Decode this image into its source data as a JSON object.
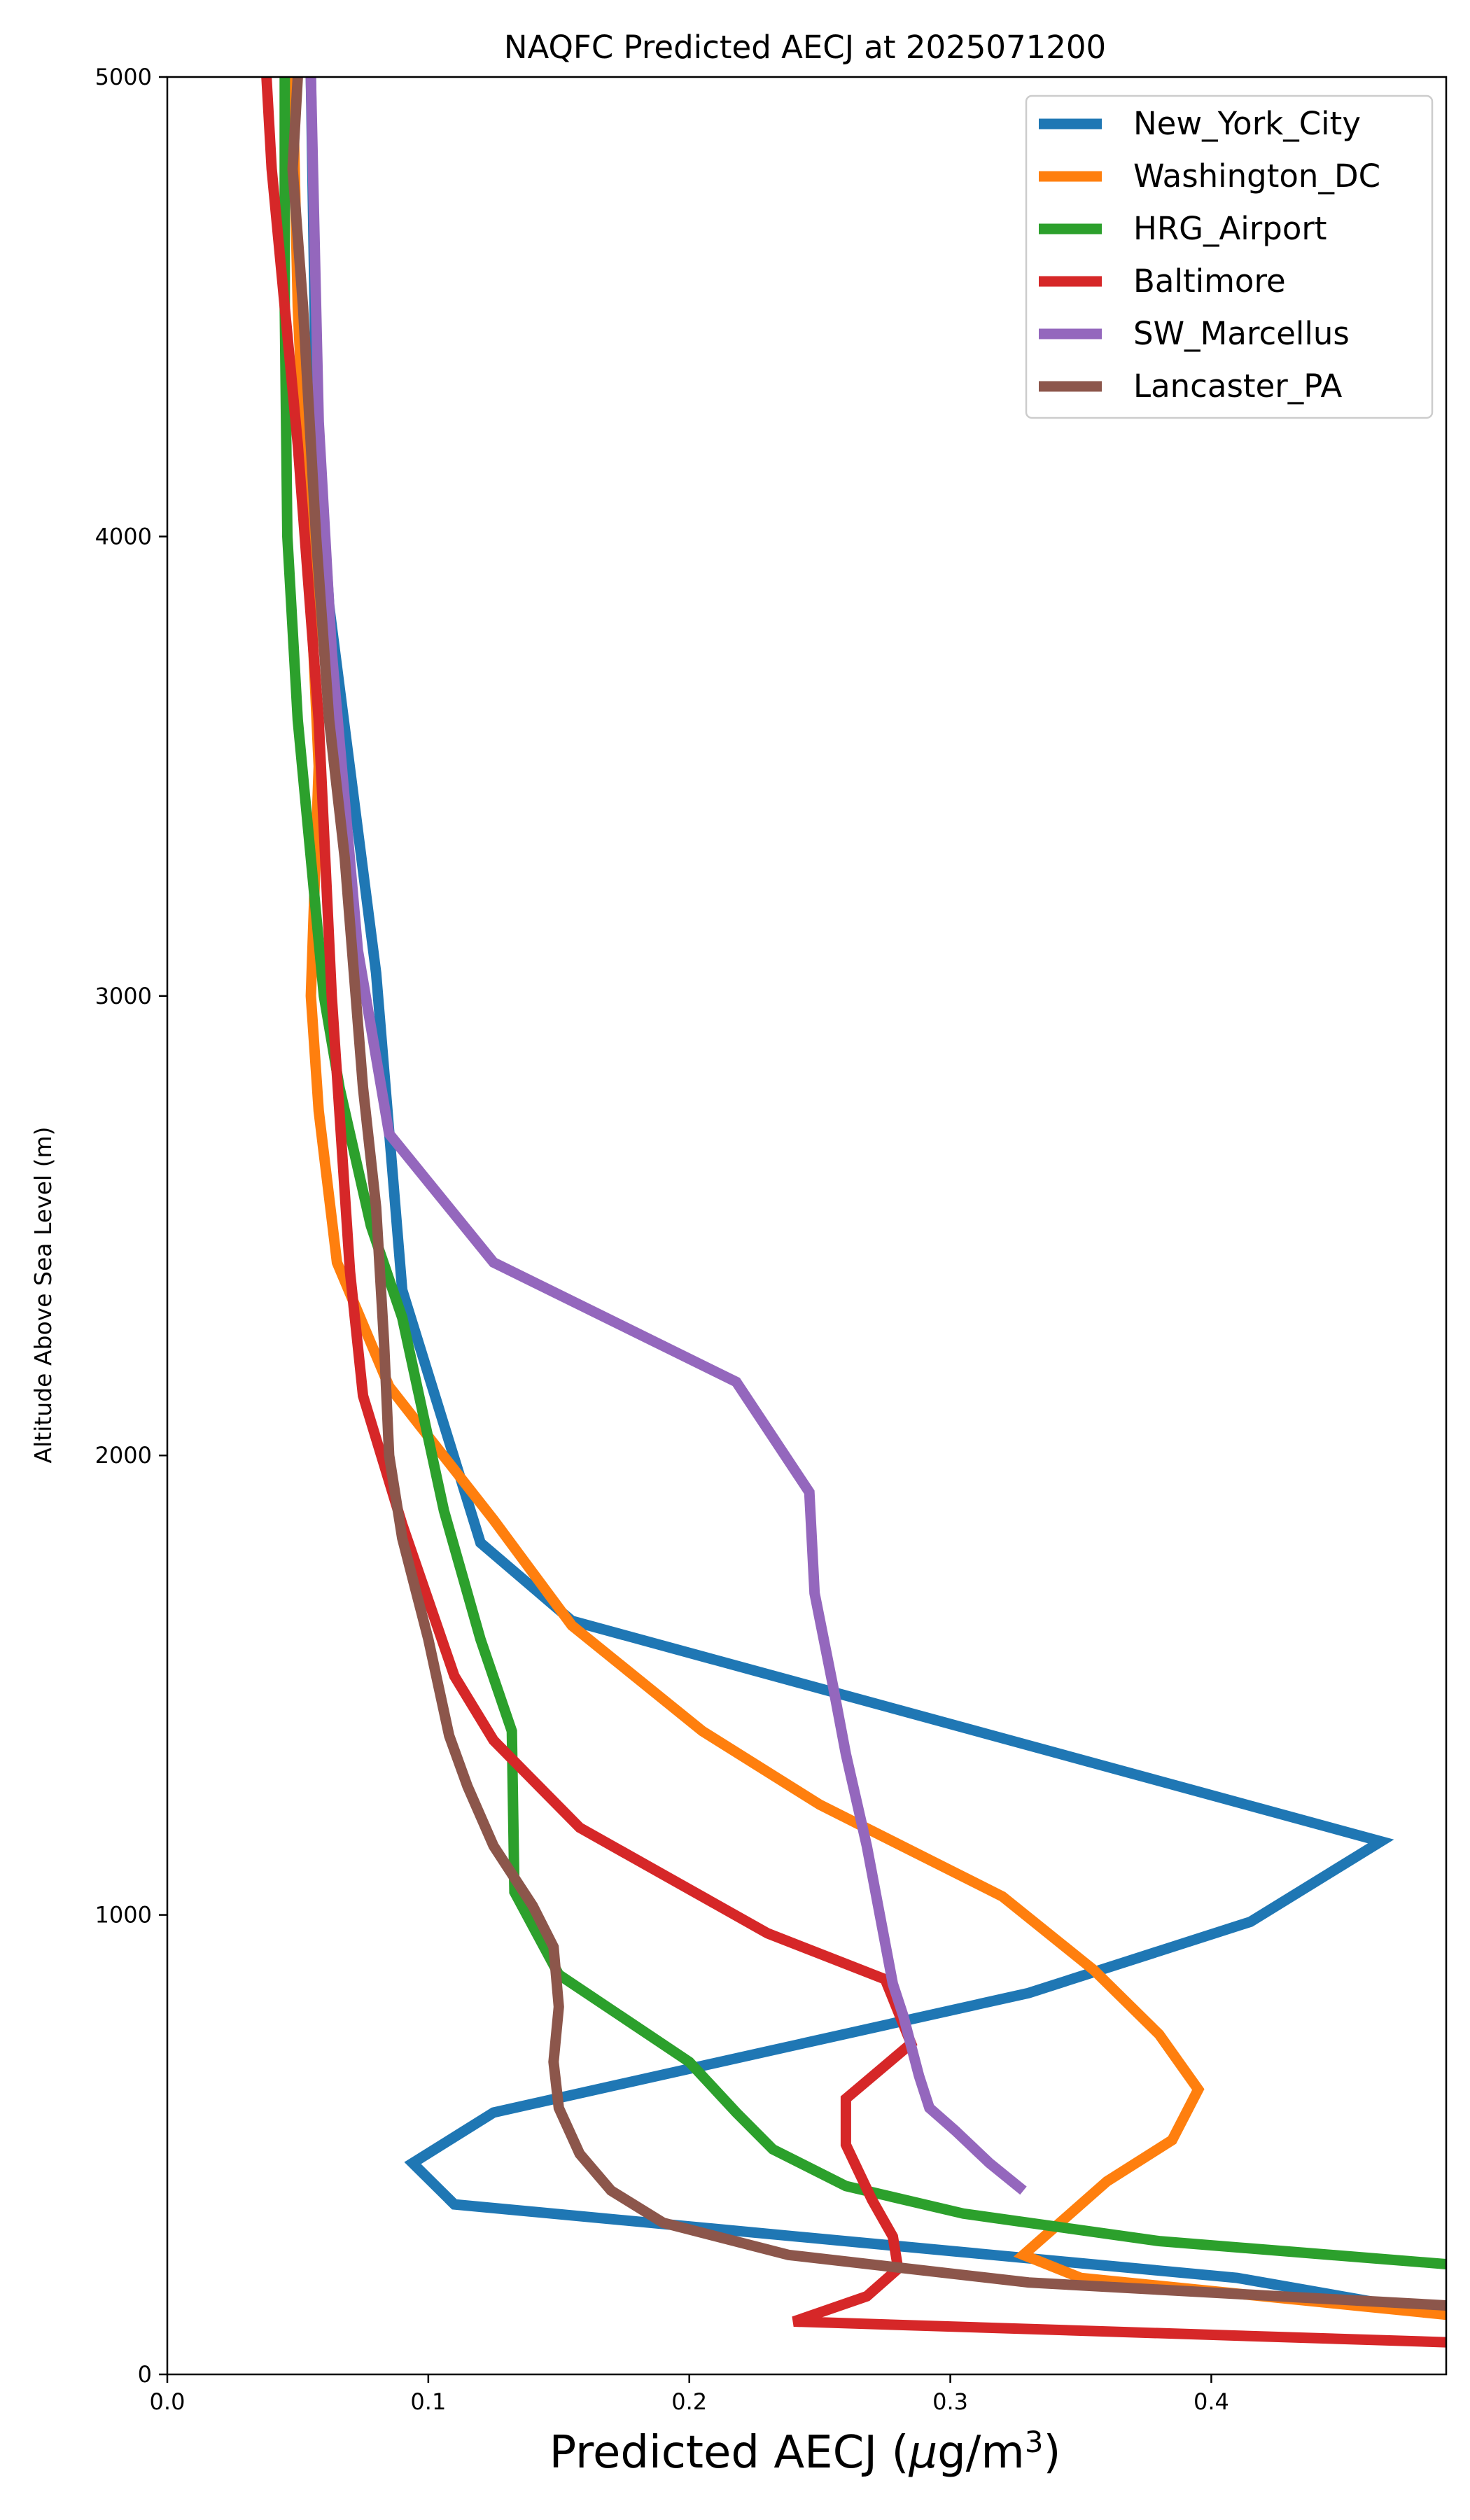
{
  "chart_data": {
    "type": "line",
    "title": "NAQFC Predicted AECJ at 2025071200",
    "xlabel": "Predicted AECJ (μg/m³)",
    "ylabel": "Altitude Above Sea Level (m)",
    "xlim": [
      0,
      0.49
    ],
    "ylim": [
      0,
      5000
    ],
    "xticks": [
      0.0,
      0.1,
      0.2,
      0.3,
      0.4
    ],
    "xtick_labels": [
      "0.0",
      "0.1",
      "0.2",
      "0.3",
      "0.4"
    ],
    "yticks": [
      0,
      1000,
      2000,
      3000,
      4000,
      5000
    ],
    "ytick_labels": [
      "0",
      "1000",
      "2000",
      "3000",
      "4000",
      "5000"
    ],
    "legend_position": "top-right",
    "series": [
      {
        "name": "New_York_City",
        "color": "#1f77b4",
        "points": [
          [
            0.49,
            130
          ],
          [
            0.41,
            210
          ],
          [
            0.11,
            370
          ],
          [
            0.094,
            460
          ],
          [
            0.125,
            570
          ],
          [
            0.33,
            830
          ],
          [
            0.415,
            985
          ],
          [
            0.465,
            1160
          ],
          [
            0.155,
            1640
          ],
          [
            0.12,
            1810
          ],
          [
            0.09,
            2360
          ],
          [
            0.08,
            3050
          ],
          [
            0.062,
            3850
          ],
          [
            0.057,
            4300
          ],
          [
            0.055,
            5000
          ]
        ]
      },
      {
        "name": "Washington_DC",
        "color": "#ff7f0e",
        "points": [
          [
            0.49,
            130
          ],
          [
            0.35,
            210
          ],
          [
            0.328,
            260
          ],
          [
            0.36,
            420
          ],
          [
            0.385,
            510
          ],
          [
            0.395,
            620
          ],
          [
            0.38,
            740
          ],
          [
            0.355,
            880
          ],
          [
            0.32,
            1040
          ],
          [
            0.25,
            1240
          ],
          [
            0.205,
            1400
          ],
          [
            0.155,
            1630
          ],
          [
            0.125,
            1860
          ],
          [
            0.085,
            2150
          ],
          [
            0.065,
            2420
          ],
          [
            0.058,
            2750
          ],
          [
            0.055,
            3000
          ],
          [
            0.058,
            3500
          ],
          [
            0.05,
            4500
          ],
          [
            0.048,
            5000
          ]
        ]
      },
      {
        "name": "HRG_Airport",
        "color": "#2ca02c",
        "points": [
          [
            0.49,
            240
          ],
          [
            0.38,
            290
          ],
          [
            0.305,
            350
          ],
          [
            0.26,
            410
          ],
          [
            0.232,
            490
          ],
          [
            0.218,
            570
          ],
          [
            0.2,
            680
          ],
          [
            0.15,
            870
          ],
          [
            0.133,
            1050
          ],
          [
            0.132,
            1400
          ],
          [
            0.12,
            1600
          ],
          [
            0.106,
            1880
          ],
          [
            0.09,
            2300
          ],
          [
            0.078,
            2500
          ],
          [
            0.066,
            2800
          ],
          [
            0.06,
            3000
          ],
          [
            0.05,
            3600
          ],
          [
            0.046,
            4000
          ],
          [
            0.045,
            4500
          ],
          [
            0.045,
            5000
          ]
        ]
      },
      {
        "name": "Baltimore",
        "color": "#d62728",
        "points": [
          [
            0.49,
            70
          ],
          [
            0.24,
            115
          ],
          [
            0.268,
            170
          ],
          [
            0.28,
            230
          ],
          [
            0.278,
            300
          ],
          [
            0.27,
            380
          ],
          [
            0.26,
            500
          ],
          [
            0.26,
            600
          ],
          [
            0.285,
            720
          ],
          [
            0.275,
            860
          ],
          [
            0.23,
            960
          ],
          [
            0.158,
            1190
          ],
          [
            0.125,
            1380
          ],
          [
            0.11,
            1520
          ],
          [
            0.09,
            1850
          ],
          [
            0.075,
            2130
          ],
          [
            0.07,
            2400
          ],
          [
            0.063,
            3000
          ],
          [
            0.058,
            3600
          ],
          [
            0.05,
            4200
          ],
          [
            0.04,
            4800
          ],
          [
            0.038,
            5000
          ]
        ]
      },
      {
        "name": "SW_Marcellus",
        "color": "#9467bd",
        "points": [
          [
            0.328,
            400
          ],
          [
            0.315,
            460
          ],
          [
            0.302,
            530
          ],
          [
            0.292,
            580
          ],
          [
            0.288,
            650
          ],
          [
            0.282,
            780
          ],
          [
            0.278,
            850
          ],
          [
            0.273,
            1000
          ],
          [
            0.268,
            1150
          ],
          [
            0.26,
            1350
          ],
          [
            0.255,
            1500
          ],
          [
            0.248,
            1700
          ],
          [
            0.246,
            1920
          ],
          [
            0.218,
            2160
          ],
          [
            0.125,
            2420
          ],
          [
            0.085,
            2700
          ],
          [
            0.073,
            3100
          ],
          [
            0.063,
            3750
          ],
          [
            0.058,
            4250
          ],
          [
            0.055,
            5000
          ]
        ]
      },
      {
        "name": "Lancaster_PA",
        "color": "#8c564b",
        "points": [
          [
            0.49,
            150
          ],
          [
            0.33,
            200
          ],
          [
            0.238,
            260
          ],
          [
            0.19,
            330
          ],
          [
            0.17,
            400
          ],
          [
            0.158,
            480
          ],
          [
            0.15,
            580
          ],
          [
            0.148,
            680
          ],
          [
            0.15,
            800
          ],
          [
            0.148,
            930
          ],
          [
            0.14,
            1020
          ],
          [
            0.125,
            1150
          ],
          [
            0.115,
            1280
          ],
          [
            0.108,
            1390
          ],
          [
            0.1,
            1600
          ],
          [
            0.09,
            1820
          ],
          [
            0.085,
            2000
          ],
          [
            0.083,
            2250
          ],
          [
            0.08,
            2540
          ],
          [
            0.075,
            2800
          ],
          [
            0.068,
            3300
          ],
          [
            0.062,
            3600
          ],
          [
            0.057,
            4000
          ],
          [
            0.052,
            4500
          ],
          [
            0.048,
            4800
          ],
          [
            0.05,
            5000
          ]
        ]
      }
    ]
  }
}
